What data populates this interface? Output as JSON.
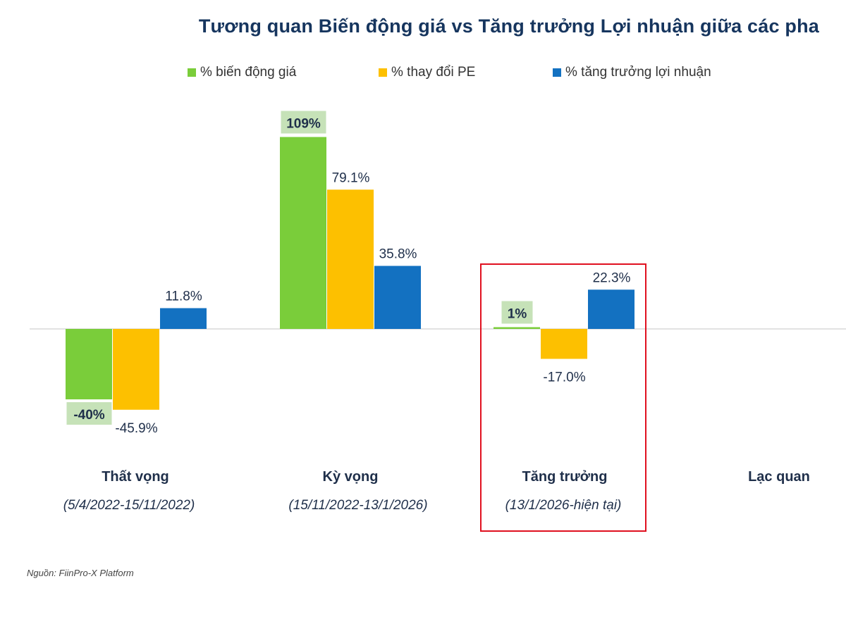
{
  "title": "Tương quan Biến động giá vs Tăng trưởng Lợi nhuận giữa các pha",
  "source": "Nguồn: FiinPro-X Platform",
  "colors": {
    "price": "#7acd3a",
    "pe": "#fdc000",
    "profit": "#1371c1",
    "highlight_label_bg": "#c6e2b8",
    "highlight_box": "#e0101f"
  },
  "chart_data": {
    "type": "bar",
    "categories": [
      "Thất vọng",
      "Kỳ vọng",
      "Tăng trưởng",
      "Lạc quan"
    ],
    "category_dates": [
      "(5/4/2022-15/11/2022)",
      "(15/11/2022-13/1/2026)",
      "(13/1/2026-hiện tại)",
      ""
    ],
    "series": [
      {
        "name": "% biến động giá",
        "values": [
          -40,
          109,
          1,
          null
        ],
        "labels": [
          "-40%",
          "109%",
          "1%",
          null
        ]
      },
      {
        "name": "% thay đổi PE",
        "values": [
          -45.9,
          79.1,
          -17.0,
          null
        ],
        "labels": [
          "-45.9%",
          "79.1%",
          "-17.0%",
          null
        ]
      },
      {
        "name": "% tăng trưởng lợi nhuận",
        "values": [
          11.8,
          35.8,
          22.3,
          null
        ],
        "labels": [
          "11.8%",
          "35.8%",
          "22.3%",
          null
        ]
      }
    ],
    "highlighted_category": "Tăng trưởng",
    "legend_position": "top",
    "grid": false
  }
}
